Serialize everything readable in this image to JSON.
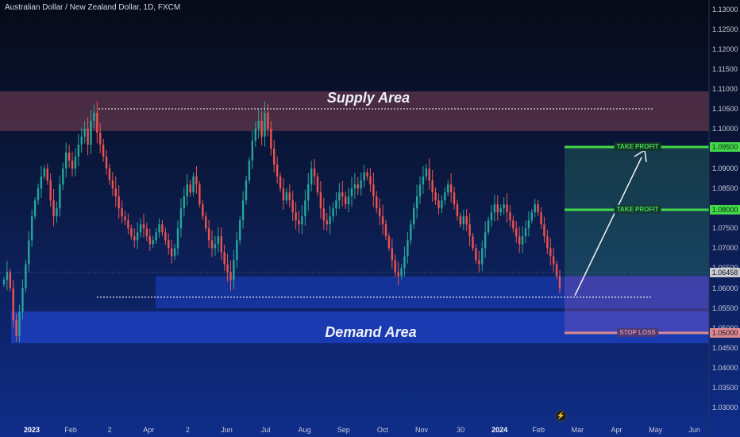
{
  "chart_data": {
    "type": "candlestick",
    "title": "Australian Dollar / New Zealand Dollar, 1D, FXCM",
    "x_labels": [
      "2023",
      "Feb",
      "2",
      "Apr",
      "2",
      "Jun",
      "Jul",
      "Aug",
      "Sep",
      "Oct",
      "Nov",
      "30",
      "2024",
      "Feb",
      "Mar",
      "Apr",
      "May",
      "Jun"
    ],
    "y_ticks": [
      "1.13000",
      "1.12500",
      "1.12000",
      "1.11500",
      "1.11000",
      "1.10500",
      "1.10000",
      "1.09500",
      "1.09000",
      "1.08500",
      "1.08000",
      "1.07500",
      "1.07000",
      "1.06500",
      "1.06000",
      "1.05500",
      "1.05000",
      "1.04500",
      "1.04000",
      "1.03500",
      "1.03000"
    ],
    "ylim": [
      1.028,
      1.1315
    ],
    "close_series": [
      1.062,
      1.064,
      1.06,
      1.052,
      1.048,
      1.054,
      1.06,
      1.066,
      1.072,
      1.078,
      1.082,
      1.085,
      1.088,
      1.09,
      1.087,
      1.082,
      1.078,
      1.08,
      1.086,
      1.09,
      1.094,
      1.092,
      1.09,
      1.093,
      1.096,
      1.098,
      1.1,
      1.096,
      1.102,
      1.104,
      1.099,
      1.096,
      1.093,
      1.09,
      1.087,
      1.085,
      1.083,
      1.08,
      1.078,
      1.077,
      1.075,
      1.073,
      1.072,
      1.074,
      1.076,
      1.075,
      1.073,
      1.071,
      1.072,
      1.074,
      1.076,
      1.074,
      1.072,
      1.07,
      1.068,
      1.07,
      1.075,
      1.08,
      1.083,
      1.086,
      1.084,
      1.088,
      1.086,
      1.081,
      1.078,
      1.075,
      1.072,
      1.07,
      1.071,
      1.073,
      1.069,
      1.066,
      1.064,
      1.062,
      1.067,
      1.072,
      1.077,
      1.082,
      1.087,
      1.092,
      1.097,
      1.1,
      1.102,
      1.098,
      1.104,
      1.1,
      1.095,
      1.091,
      1.088,
      1.085,
      1.082,
      1.084,
      1.082,
      1.079,
      1.077,
      1.076,
      1.078,
      1.082,
      1.086,
      1.09,
      1.088,
      1.084,
      1.08,
      1.077,
      1.076,
      1.078,
      1.08,
      1.082,
      1.084,
      1.083,
      1.081,
      1.083,
      1.085,
      1.086,
      1.085,
      1.087,
      1.089,
      1.088,
      1.086,
      1.083,
      1.08,
      1.078,
      1.076,
      1.073,
      1.07,
      1.067,
      1.064,
      1.063,
      1.065,
      1.068,
      1.072,
      1.076,
      1.08,
      1.083,
      1.086,
      1.088,
      1.09,
      1.087,
      1.084,
      1.082,
      1.08,
      1.082,
      1.084,
      1.086,
      1.084,
      1.081,
      1.078,
      1.076,
      1.078,
      1.076,
      1.073,
      1.07,
      1.067,
      1.066,
      1.07,
      1.074,
      1.077,
      1.079,
      1.081,
      1.079,
      1.08,
      1.081,
      1.079,
      1.077,
      1.075,
      1.073,
      1.071,
      1.073,
      1.075,
      1.077,
      1.079,
      1.081,
      1.079,
      1.076,
      1.073,
      1.07,
      1.068,
      1.066,
      1.063,
      1.06
    ],
    "zones": [
      {
        "name": "Supply Area",
        "high": 1.109,
        "low": 1.099
      },
      {
        "name": "Demand Area",
        "high": 1.0552,
        "low": 1.0475
      }
    ],
    "levels": [
      {
        "label": "TAKE PROFIT",
        "price": "1.09500",
        "color": "#43d84a"
      },
      {
        "label": "TAKE PROFIT",
        "price": "1.08000",
        "color": "#43d84a"
      },
      {
        "label": "STOP LOSS",
        "price": "1.05000",
        "color": "#d98a94"
      }
    ],
    "current_price": "1.06458",
    "dotted_resistance": 1.1043,
    "dotted_support": 1.0585,
    "colors": {
      "up": "#26a69a",
      "down": "#ef5350",
      "tp": "#43d84a",
      "sl": "#d98a94",
      "supply": "#5a3348",
      "demand": "#1e42c8"
    }
  },
  "labels": {
    "supply": "Supply Area",
    "demand": "Demand Area",
    "tp1": "TAKE PROFIT",
    "tp2": "TAKE PROFIT",
    "sl": "STOP LOSS",
    "tp1_price": "1.09500",
    "tp2_price": "1.08000",
    "sl_price": "1.05000",
    "current_price": "1.06458"
  },
  "icons": {
    "logo": "tradingview-flash-icon"
  }
}
